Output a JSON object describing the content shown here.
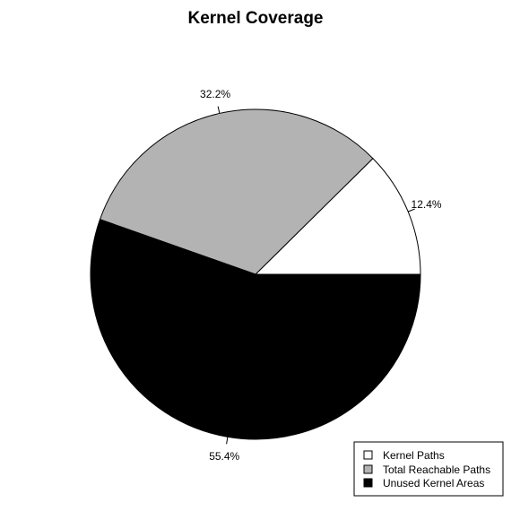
{
  "chart_data": {
    "type": "pie",
    "title": "Kernel Coverage",
    "slices": [
      {
        "label": "Kernel Paths",
        "value": 12.4,
        "display": "12.4%",
        "color": "#ffffff"
      },
      {
        "label": "Total Reachable Paths",
        "value": 32.2,
        "display": "32.2%",
        "color": "#b3b3b3"
      },
      {
        "label": "Unused Kernel Areas",
        "value": 55.4,
        "display": "55.4%",
        "color": "#000000"
      }
    ],
    "start_angle": "0 degrees (3 o'clock), counter-clockwise",
    "legend_position": "bottom-right"
  }
}
